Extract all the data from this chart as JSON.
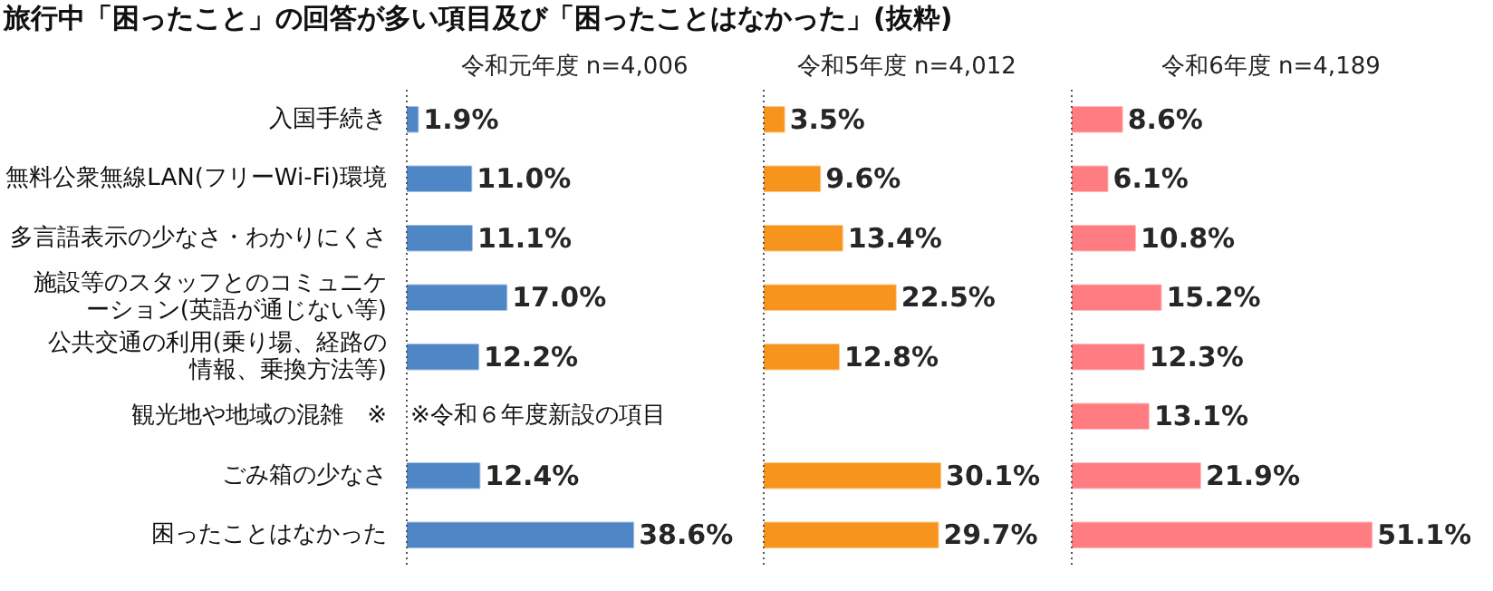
{
  "chart_data": [
    {
      "type": "bar",
      "orientation": "horizontal",
      "title": "旅行中「困ったこと」の回答が多い項目及び「困ったことはなかった」(抜粋)",
      "subtitle": "令和元年度 n=4,006",
      "categories": [
        "入国手続き",
        "無料公衆無線LAN(フリーWi-Fi)環境",
        "多言語表示の少なさ・わかりにくさ",
        "施設等のスタッフとのコミュニケーション(英語が通じない等)",
        "公共交通の利用(乗り場、経路の情報、乗換方法等)",
        "観光地や地域の混雑　※",
        "ごみ箱の少なさ",
        "困ったことはなかった"
      ],
      "series": [
        {
          "color": "#4f86c6",
          "values": [
            1.9,
            11.0,
            11.1,
            17.0,
            12.2,
            null,
            12.4,
            38.6
          ],
          "value_labels": [
            "1.9%",
            "11.0%",
            "11.1%",
            "17.0%",
            "12.2%",
            null,
            "12.4%",
            "38.6%"
          ]
        }
      ],
      "tick_labels": "y",
      "annotations": [
        "※令和６年度新設の項目"
      ]
    },
    {
      "type": "bar",
      "orientation": "horizontal",
      "subtitle": "令和5年度 n=4,012",
      "categories": [
        "入国手続き",
        "無料公衆無線LAN(フリーWi-Fi)環境",
        "多言語表示の少なさ・わかりにくさ",
        "施設等のスタッフとのコミュニケーション(英語が通じない等)",
        "公共交通の利用(乗り場、経路の情報、乗換方法等)",
        "観光地や地域の混雑　※",
        "ごみ箱の少なさ",
        "困ったことはなかった"
      ],
      "series": [
        {
          "color": "#f7941d",
          "values": [
            3.5,
            9.6,
            13.4,
            22.5,
            12.8,
            null,
            30.1,
            29.7
          ],
          "value_labels": [
            "3.5%",
            "9.6%",
            "13.4%",
            "22.5%",
            "12.8%",
            null,
            "30.1%",
            "29.7%"
          ]
        }
      ],
      "tick_labels": false
    },
    {
      "type": "bar",
      "orientation": "horizontal",
      "subtitle": "令和6年度 n=4,189",
      "categories": [
        "入国手続き",
        "無料公衆無線LAN(フリーWi-Fi)環境",
        "多言語表示の少なさ・わかりにくさ",
        "施設等のスタッフとのコミュニケーション(英語が通じない等)",
        "公共交通の利用(乗り場、経路の情報、乗換方法等)",
        "観光地や地域の混雑　※",
        "ごみ箱の少なさ",
        "困ったことはなかった"
      ],
      "series": [
        {
          "color": "#ff7c80",
          "values": [
            8.6,
            6.1,
            10.8,
            15.2,
            12.3,
            13.1,
            21.9,
            51.1
          ],
          "value_labels": [
            "8.6%",
            "6.1%",
            "10.8%",
            "15.2%",
            "12.3%",
            "13.1%",
            "21.9%",
            "51.1%"
          ]
        }
      ],
      "tick_labels": false
    }
  ]
}
